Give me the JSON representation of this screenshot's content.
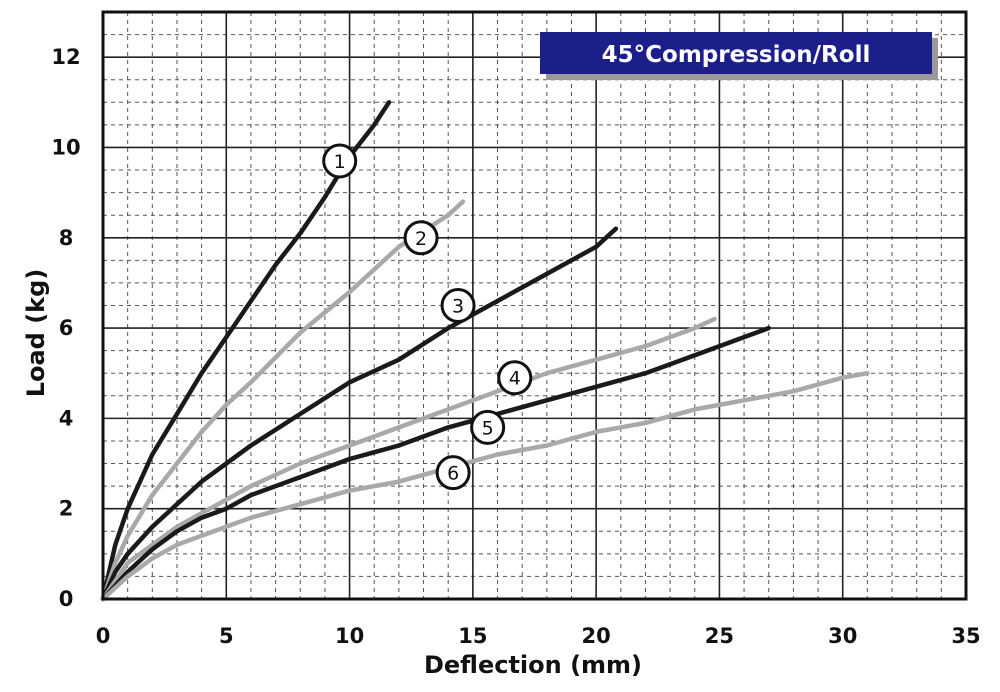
{
  "chart_data": {
    "type": "line",
    "title": "45°Compression/Roll",
    "xlabel": "Deflection (mm)",
    "ylabel": "Load (kg)",
    "xlim": [
      0,
      35
    ],
    "ylim": [
      0,
      13
    ],
    "xticks": [
      0,
      5,
      10,
      15,
      20,
      25,
      30,
      35
    ],
    "yticks": [
      0,
      2,
      4,
      6,
      8,
      10,
      12
    ],
    "grid": true,
    "legend": "none",
    "series": [
      {
        "label": "1",
        "color": "#1a1a1a",
        "label_at": [
          9.6,
          9.7
        ],
        "x": [
          0,
          0.5,
          1,
          2,
          3,
          4,
          5,
          6,
          7,
          8,
          9,
          10,
          11,
          11.6
        ],
        "y": [
          0,
          1.2,
          2.0,
          3.2,
          4.1,
          5.0,
          5.8,
          6.6,
          7.4,
          8.1,
          8.9,
          9.8,
          10.5,
          11.0
        ]
      },
      {
        "label": "2",
        "color": "#a9a9a9",
        "label_at": [
          12.9,
          8.0
        ],
        "x": [
          0,
          0.5,
          1,
          2,
          3,
          4,
          5,
          6,
          8,
          10,
          12,
          14,
          14.6
        ],
        "y": [
          0,
          0.8,
          1.4,
          2.3,
          3.0,
          3.7,
          4.3,
          4.8,
          5.9,
          6.8,
          7.8,
          8.5,
          8.8
        ]
      },
      {
        "label": "3",
        "color": "#1a1a1a",
        "label_at": [
          14.4,
          6.5
        ],
        "x": [
          0,
          0.5,
          1,
          2,
          3,
          4,
          5,
          6,
          8,
          10,
          12,
          14,
          16,
          18,
          20,
          20.8
        ],
        "y": [
          0,
          0.6,
          1.0,
          1.6,
          2.1,
          2.6,
          3.0,
          3.4,
          4.1,
          4.8,
          5.3,
          6.0,
          6.6,
          7.2,
          7.8,
          8.2
        ]
      },
      {
        "label": "4",
        "color": "#a9a9a9",
        "label_at": [
          16.7,
          4.9
        ],
        "x": [
          0,
          1,
          2,
          3,
          4,
          5,
          6,
          8,
          10,
          12,
          14,
          16,
          18,
          20,
          22,
          24,
          24.8
        ],
        "y": [
          0,
          0.8,
          1.2,
          1.6,
          1.9,
          2.2,
          2.5,
          3.0,
          3.4,
          3.8,
          4.2,
          4.6,
          5.0,
          5.3,
          5.6,
          6.0,
          6.2
        ]
      },
      {
        "label": "5",
        "color": "#1a1a1a",
        "label_at": [
          15.6,
          3.8
        ],
        "x": [
          0,
          1,
          2,
          3,
          4,
          5,
          6,
          8,
          10,
          12,
          14,
          16,
          18,
          20,
          22,
          24,
          26,
          27
        ],
        "y": [
          0,
          0.6,
          1.1,
          1.5,
          1.8,
          2.0,
          2.3,
          2.7,
          3.1,
          3.4,
          3.8,
          4.1,
          4.4,
          4.7,
          5.0,
          5.4,
          5.8,
          6.0
        ]
      },
      {
        "label": "6",
        "color": "#a9a9a9",
        "label_at": [
          14.2,
          2.8
        ],
        "x": [
          0,
          1,
          2,
          3,
          4,
          5,
          6,
          8,
          10,
          12,
          14,
          16,
          18,
          20,
          22,
          24,
          26,
          28,
          30,
          31
        ],
        "y": [
          0,
          0.5,
          0.9,
          1.2,
          1.4,
          1.6,
          1.8,
          2.1,
          2.4,
          2.6,
          2.9,
          3.2,
          3.4,
          3.7,
          3.9,
          4.2,
          4.4,
          4.6,
          4.9,
          5.0
        ]
      }
    ]
  }
}
